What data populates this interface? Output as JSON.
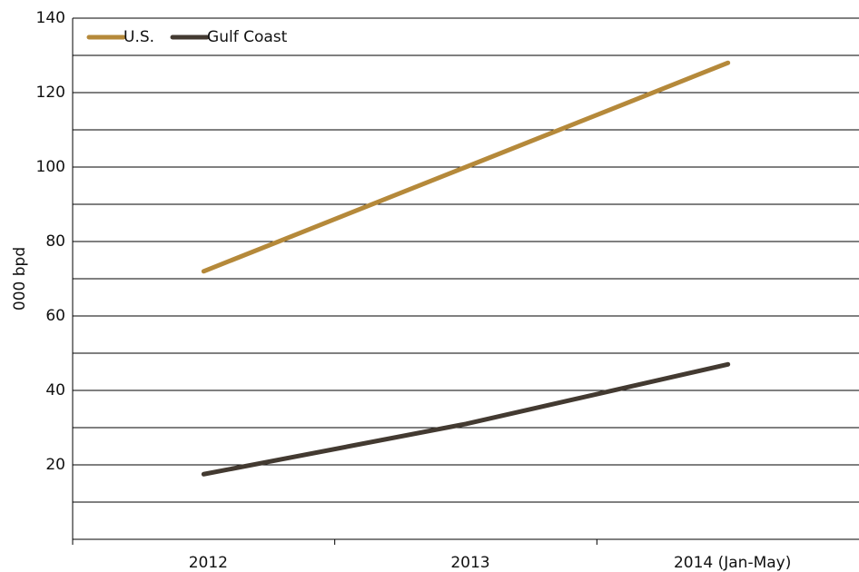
{
  "chart_data": {
    "type": "line",
    "y_label": "000 bpd",
    "categories": [
      "2012",
      "2013",
      "2014 (Jan-May)"
    ],
    "series": [
      {
        "name": "U.S.",
        "color": "#b5893a",
        "values": [
          72,
          100,
          128
        ]
      },
      {
        "name": "Gulf Coast",
        "color": "#433a31",
        "values": [
          17.5,
          31,
          47
        ]
      }
    ],
    "ylim": [
      0,
      140
    ],
    "yticks": [
      20,
      40,
      60,
      80,
      100,
      120,
      140
    ],
    "yticks_minor": [
      10,
      30,
      50,
      70,
      90,
      110,
      130
    ],
    "grid": true,
    "legend": "top-left"
  }
}
